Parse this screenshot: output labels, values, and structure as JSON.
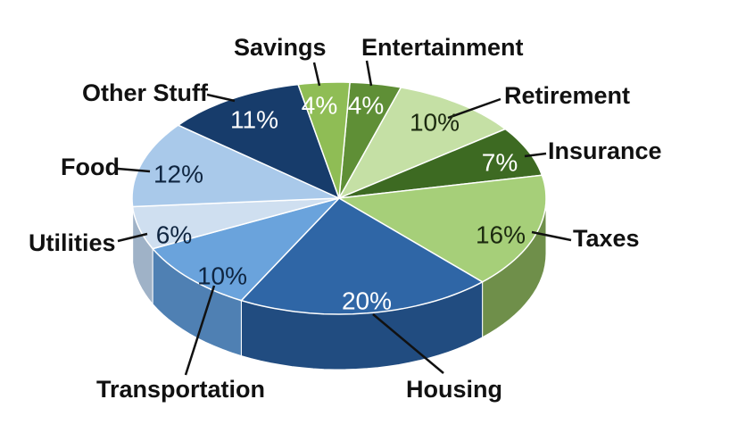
{
  "chart_data": {
    "type": "pie",
    "title": "",
    "slices": [
      {
        "label": "Entertainment",
        "value": 4,
        "value_label": "4%",
        "color": "#5f8f36",
        "side": "#4a7229",
        "text_color": "#ffffff"
      },
      {
        "label": "Retirement",
        "value": 10,
        "value_label": "10%",
        "color": "#c5e0a5",
        "side": "#9dbb7f",
        "text_color": "#1c2a10"
      },
      {
        "label": "Insurance",
        "value": 7,
        "value_label": "7%",
        "color": "#3d6a22",
        "side": "#2f5219",
        "text_color": "#ffffff"
      },
      {
        "label": "Taxes",
        "value": 16,
        "value_label": "16%",
        "color": "#a6cf79",
        "side": "#6f8f4a",
        "text_color": "#1c2a10"
      },
      {
        "label": "Housing",
        "value": 20,
        "value_label": "20%",
        "color": "#2f66a6",
        "side": "#214c80",
        "text_color": "#ffffff"
      },
      {
        "label": "Transportation",
        "value": 10,
        "value_label": "10%",
        "color": "#6aa3dc",
        "side": "#4f80b3",
        "text_color": "#0f2540"
      },
      {
        "label": "Utilities",
        "value": 6,
        "value_label": "6%",
        "color": "#cfdff0",
        "side": "#9fb2c7",
        "text_color": "#0f2540"
      },
      {
        "label": "Food",
        "value": 12,
        "value_label": "12%",
        "color": "#a9c9ea",
        "side": "#809fc0",
        "text_color": "#0f2540"
      },
      {
        "label": "Other Stuff",
        "value": 11,
        "value_label": "11%",
        "color": "#173c6b",
        "side": "#102c50",
        "text_color": "#ffffff"
      },
      {
        "label": "Savings",
        "value": 4,
        "value_label": "4%",
        "color": "#8fbd55",
        "side": "#6f9740",
        "text_color": "#ffffff"
      }
    ],
    "legend": "none"
  }
}
